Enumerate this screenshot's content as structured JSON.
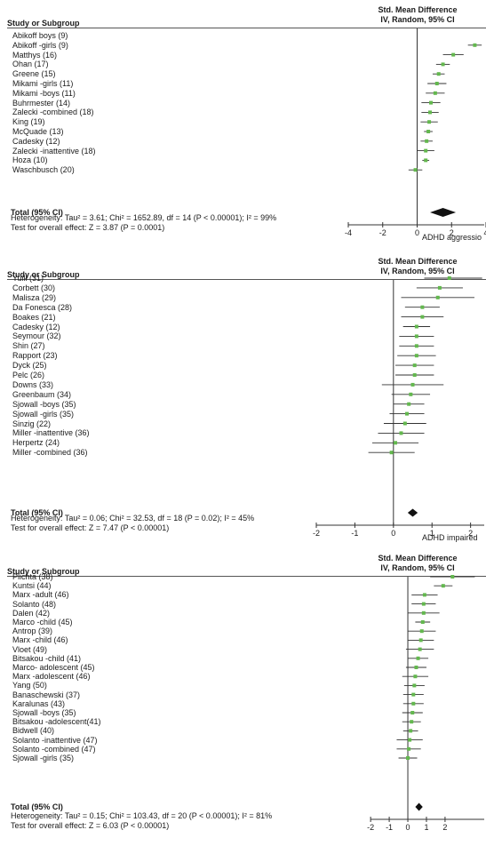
{
  "chart_data": [
    {
      "type": "forest",
      "col_study": "Study or Subgroup",
      "col_effect_1": "Std. Mean Difference",
      "col_effect_2": "IV, Random, 95% CI",
      "total_label": "Total (95% CI)",
      "heterogeneity": "Heterogeneity: Tau² = 3.61; Chi² = 1652.89, df = 14 (P < 0.00001); I² = 99%",
      "overall_effect": "Test for overall effect: Z = 3.87 (P = 0.0001)",
      "favours_label": "ADHD aggressio",
      "xlim": [
        -4,
        4
      ],
      "ticks": [
        -4,
        -2,
        0,
        2,
        4
      ],
      "studies": [
        {
          "name": "Abikoff boys (9)",
          "smd": 4.3,
          "lo": 4.1,
          "hi": 4.5
        },
        {
          "name": "Abikoff -girls (9)",
          "smd": 3.35,
          "lo": 2.95,
          "hi": 3.75
        },
        {
          "name": "Matthys (16)",
          "smd": 2.1,
          "lo": 1.5,
          "hi": 2.7
        },
        {
          "name": "Ohan (17)",
          "smd": 1.5,
          "lo": 1.1,
          "hi": 1.9
        },
        {
          "name": "Greene (15)",
          "smd": 1.25,
          "lo": 0.9,
          "hi": 1.6
        },
        {
          "name": "Mikami -girls (11)",
          "smd": 1.15,
          "lo": 0.6,
          "hi": 1.7
        },
        {
          "name": "Mikami -boys (11)",
          "smd": 1.05,
          "lo": 0.5,
          "hi": 1.6
        },
        {
          "name": "Buhrmester (14)",
          "smd": 0.8,
          "lo": 0.25,
          "hi": 1.35
        },
        {
          "name": "Zalecki -combined (18)",
          "smd": 0.75,
          "lo": 0.25,
          "hi": 1.25
        },
        {
          "name": "King (19)",
          "smd": 0.7,
          "lo": 0.2,
          "hi": 1.2
        },
        {
          "name": "McQuade (13)",
          "smd": 0.65,
          "lo": 0.4,
          "hi": 0.9
        },
        {
          "name": "Cadesky (12)",
          "smd": 0.55,
          "lo": 0.2,
          "hi": 0.9
        },
        {
          "name": "Zalecki -inattentive (18)",
          "smd": 0.5,
          "lo": 0.0,
          "hi": 1.0
        },
        {
          "name": "Hoza (10)",
          "smd": 0.5,
          "lo": 0.3,
          "hi": 0.7
        },
        {
          "name": "Waschbusch (20)",
          "smd": -0.1,
          "lo": -0.5,
          "hi": 0.3
        }
      ],
      "total": {
        "smd": 1.5,
        "lo": 0.75,
        "hi": 2.25
      }
    },
    {
      "type": "forest",
      "col_study": "Study or Subgroup",
      "col_effect_1": "Std. Mean Difference",
      "col_effect_2": "IV, Random, 95% CI",
      "total_label": "Total (95% CI)",
      "heterogeneity": "Heterogeneity: Tau² = 0.06; Chi² = 32.53, df = 18 (P = 0.02); I² = 45%",
      "overall_effect": "Test for overall effect: Z = 7.47 (P < 0.00001)",
      "favours_label": "ADHD impaired",
      "xlim": [
        -2,
        2.4
      ],
      "ticks": [
        -2,
        -1,
        0,
        1,
        2
      ],
      "studies": [
        {
          "name": "Yuill (31)",
          "smd": 1.45,
          "lo": 0.8,
          "hi": 2.3
        },
        {
          "name": "Corbett (30)",
          "smd": 1.2,
          "lo": 0.6,
          "hi": 1.8
        },
        {
          "name": "Malisza (29)",
          "smd": 1.15,
          "lo": 0.2,
          "hi": 2.1
        },
        {
          "name": "Da Fonesca (28)",
          "smd": 0.75,
          "lo": 0.3,
          "hi": 1.2
        },
        {
          "name": "Boakes (21)",
          "smd": 0.75,
          "lo": 0.2,
          "hi": 1.3
        },
        {
          "name": "Cadesky (12)",
          "smd": 0.6,
          "lo": 0.25,
          "hi": 0.95
        },
        {
          "name": "Seymour (32)",
          "smd": 0.6,
          "lo": 0.15,
          "hi": 1.05
        },
        {
          "name": "Shin (27)",
          "smd": 0.6,
          "lo": 0.15,
          "hi": 1.05
        },
        {
          "name": "Rapport (23)",
          "smd": 0.6,
          "lo": 0.1,
          "hi": 1.1
        },
        {
          "name": "Dyck (25)",
          "smd": 0.55,
          "lo": 0.05,
          "hi": 1.05
        },
        {
          "name": "Pelc (26)",
          "smd": 0.55,
          "lo": 0.05,
          "hi": 1.05
        },
        {
          "name": "Downs (33)",
          "smd": 0.5,
          "lo": -0.3,
          "hi": 1.3
        },
        {
          "name": "Greenbaum (34)",
          "smd": 0.45,
          "lo": -0.05,
          "hi": 0.95
        },
        {
          "name": "Sjowall -boys (35)",
          "smd": 0.4,
          "lo": 0.0,
          "hi": 0.8
        },
        {
          "name": "Sjowall -girls (35)",
          "smd": 0.35,
          "lo": -0.1,
          "hi": 0.8
        },
        {
          "name": "Sinzig (22)",
          "smd": 0.3,
          "lo": -0.25,
          "hi": 0.85
        },
        {
          "name": "Miller -inattentive (36)",
          "smd": 0.2,
          "lo": -0.4,
          "hi": 0.8
        },
        {
          "name": "Herpertz (24)",
          "smd": 0.05,
          "lo": -0.55,
          "hi": 0.65
        },
        {
          "name": "Miller -combined (36)",
          "smd": -0.05,
          "lo": -0.65,
          "hi": 0.55
        }
      ],
      "total": {
        "smd": 0.5,
        "lo": 0.37,
        "hi": 0.63
      }
    },
    {
      "type": "forest",
      "col_study": "Study or Subgroup",
      "col_effect_1": "Std. Mean Difference",
      "col_effect_2": "IV, Random, 95% CI",
      "total_label": "Total (95% CI)",
      "heterogeneity": "Heterogeneity: Tau² = 0.15; Chi² = 103.43, df = 20 (P < 0.00001); I² = 81%",
      "overall_effect": "Test for overall effect: Z = 6.03 (P < 0.00001)",
      "favours_label": "",
      "xlim": [
        -3.2,
        4.2
      ],
      "ticks": [
        -2,
        -1,
        0,
        1,
        2
      ],
      "studies": [
        {
          "name": "Plichta (38)",
          "smd": 2.4,
          "lo": 1.2,
          "hi": 3.6
        },
        {
          "name": "Kuntsi (44)",
          "smd": 1.9,
          "lo": 1.4,
          "hi": 2.4
        },
        {
          "name": "Marx -adult (46)",
          "smd": 0.9,
          "lo": 0.2,
          "hi": 1.6
        },
        {
          "name": "Solanto (48)",
          "smd": 0.85,
          "lo": 0.2,
          "hi": 1.5
        },
        {
          "name": "Dalen (42)",
          "smd": 0.85,
          "lo": 0.0,
          "hi": 1.7
        },
        {
          "name": "Marco -child (45)",
          "smd": 0.8,
          "lo": 0.4,
          "hi": 1.2
        },
        {
          "name": "Antrop (39)",
          "smd": 0.75,
          "lo": 0.0,
          "hi": 1.5
        },
        {
          "name": "Marx -child (46)",
          "smd": 0.7,
          "lo": 0.0,
          "hi": 1.4
        },
        {
          "name": "Vloet (49)",
          "smd": 0.65,
          "lo": -0.1,
          "hi": 1.4
        },
        {
          "name": "Bitsakou -child (41)",
          "smd": 0.55,
          "lo": 0.0,
          "hi": 1.1
        },
        {
          "name": "Marco- adolescent (45)",
          "smd": 0.45,
          "lo": -0.1,
          "hi": 1.0
        },
        {
          "name": "Marx -adolescent (46)",
          "smd": 0.4,
          "lo": -0.3,
          "hi": 1.1
        },
        {
          "name": "Yang (50)",
          "smd": 0.35,
          "lo": -0.2,
          "hi": 0.9
        },
        {
          "name": "Banaschewski (37)",
          "smd": 0.3,
          "lo": -0.25,
          "hi": 0.85
        },
        {
          "name": "Karalunas (43)",
          "smd": 0.3,
          "lo": -0.25,
          "hi": 0.85
        },
        {
          "name": "Sjowall -boys (35)",
          "smd": 0.25,
          "lo": -0.3,
          "hi": 0.8
        },
        {
          "name": "Bitsakou -adolescent(41)",
          "smd": 0.2,
          "lo": -0.3,
          "hi": 0.7
        },
        {
          "name": "Bidwell (40)",
          "smd": 0.15,
          "lo": -0.25,
          "hi": 0.55
        },
        {
          "name": "Solanto -inattentive (47)",
          "smd": 0.1,
          "lo": -0.6,
          "hi": 0.8
        },
        {
          "name": "Solanto -combined (47)",
          "smd": 0.05,
          "lo": -0.6,
          "hi": 0.7
        },
        {
          "name": "Sjowall -girls (35)",
          "smd": 0.0,
          "lo": -0.5,
          "hi": 0.5
        }
      ],
      "total": {
        "smd": 0.6,
        "lo": 0.4,
        "hi": 0.8
      }
    }
  ]
}
